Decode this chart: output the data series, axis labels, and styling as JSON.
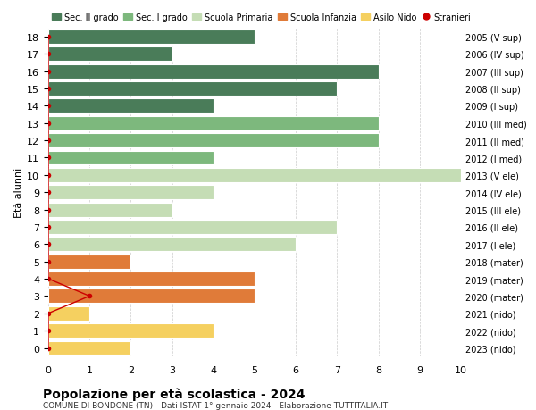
{
  "ages": [
    18,
    17,
    16,
    15,
    14,
    13,
    12,
    11,
    10,
    9,
    8,
    7,
    6,
    5,
    4,
    3,
    2,
    1,
    0
  ],
  "years": [
    "2005 (V sup)",
    "2006 (IV sup)",
    "2007 (III sup)",
    "2008 (II sup)",
    "2009 (I sup)",
    "2010 (III med)",
    "2011 (II med)",
    "2012 (I med)",
    "2013 (V ele)",
    "2014 (IV ele)",
    "2015 (III ele)",
    "2016 (II ele)",
    "2017 (I ele)",
    "2018 (mater)",
    "2019 (mater)",
    "2020 (mater)",
    "2021 (nido)",
    "2022 (nido)",
    "2023 (nido)"
  ],
  "bar_values": [
    5,
    3,
    8,
    7,
    4,
    8,
    8,
    4,
    10,
    4,
    3,
    7,
    6,
    2,
    5,
    5,
    1,
    4,
    2
  ],
  "bar_colors": [
    "#4a7c59",
    "#4a7c59",
    "#4a7c59",
    "#4a7c59",
    "#4a7c59",
    "#7db87d",
    "#7db87d",
    "#7db87d",
    "#c5ddb5",
    "#c5ddb5",
    "#c5ddb5",
    "#c5ddb5",
    "#c5ddb5",
    "#e07b39",
    "#e07b39",
    "#e07b39",
    "#f5d060",
    "#f5d060",
    "#f5d060"
  ],
  "stranieri_vals_by_age": [
    0,
    0,
    0,
    1,
    0,
    0,
    0,
    0,
    0,
    0,
    0,
    0,
    0,
    0,
    0,
    0,
    0,
    0,
    0
  ],
  "title": "Popolazione per età scolastica - 2024",
  "subtitle": "COMUNE DI BONDONE (TN) - Dati ISTAT 1° gennaio 2024 - Elaborazione TUTTITALIA.IT",
  "ylabel": "Età alunni",
  "xlabel_vals": [
    0,
    1,
    2,
    3,
    4,
    5,
    6,
    7,
    8,
    9,
    10
  ],
  "xlim": [
    0,
    10
  ],
  "legend_labels": [
    "Sec. II grado",
    "Sec. I grado",
    "Scuola Primaria",
    "Scuola Infanzia",
    "Asilo Nido",
    "Stranieri"
  ],
  "legend_colors": [
    "#4a7c59",
    "#7db87d",
    "#c5ddb5",
    "#e07b39",
    "#f5d060",
    "#cc0000"
  ],
  "bg_color": "#ffffff",
  "grid_color": "#cccccc",
  "bar_height": 0.82
}
